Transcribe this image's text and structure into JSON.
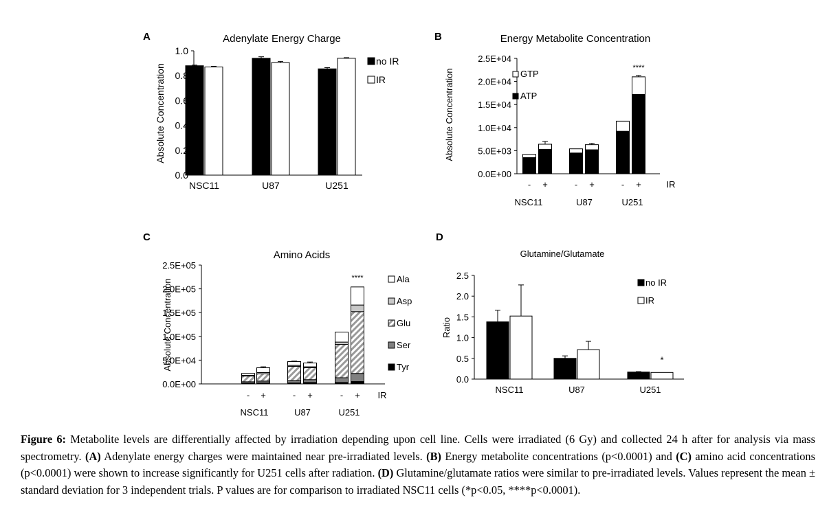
{
  "chart_data": [
    {
      "panel": "A",
      "type": "bar",
      "title": "Adenylate Energy Charge",
      "ylabel": "Absolute Concentration",
      "xlabel": "",
      "ylim": [
        0,
        1.0
      ],
      "yticks": [
        "0.0",
        "0.2",
        "0.4",
        "0.6",
        "0.8",
        "1.0"
      ],
      "categories": [
        "NSC11",
        "U87",
        "U251"
      ],
      "series": [
        {
          "name": "no IR",
          "color": "#000000",
          "values": [
            0.88,
            0.94,
            0.855
          ],
          "errors": [
            0.005,
            0.012,
            0.01
          ]
        },
        {
          "name": "IR",
          "color": "#ffffff",
          "values": [
            0.87,
            0.905,
            0.94
          ],
          "errors": [
            0.005,
            0.01,
            0.005
          ]
        }
      ]
    },
    {
      "panel": "B",
      "type": "bar",
      "stacked": true,
      "title": "Energy Metabolite Concentration",
      "ylabel": "Absolute Concentration",
      "ylim": [
        0,
        25000
      ],
      "yticks": [
        "0.0E+00",
        "5.0E+03",
        "1.0E+04",
        "1.5E+04",
        "2.0E+04",
        "2.5E+04"
      ],
      "groups": [
        "NSC11",
        "U87",
        "U251"
      ],
      "conditions": [
        "-",
        "+"
      ],
      "condition_label": "IR",
      "legend": [
        "GTP",
        "ATP"
      ],
      "series": [
        {
          "name": "ATP",
          "color": "#000000",
          "values": [
            3500,
            5300,
            4500,
            5200,
            9200,
            17200
          ],
          "errors": [
            0,
            0,
            0,
            0,
            500,
            1200
          ]
        },
        {
          "name": "GTP",
          "color": "#ffffff",
          "values": [
            700,
            1100,
            900,
            1100,
            2200,
            3800
          ],
          "errors": [
            0,
            600,
            0,
            300,
            0,
            300
          ]
        }
      ],
      "annotations": [
        {
          "text": "****",
          "at": "U251 +"
        }
      ]
    },
    {
      "panel": "C",
      "type": "bar",
      "stacked": true,
      "title": "Amino Acids",
      "ylabel": "Absolute Concentration",
      "ylim": [
        0,
        250000
      ],
      "yticks": [
        "0.0E+00",
        "5.0E+04",
        "1.0E+05",
        "1.5E+05",
        "2.0E+05",
        "2.5E+05"
      ],
      "groups": [
        "NSC11",
        "U87",
        "U251"
      ],
      "conditions": [
        "-",
        "+"
      ],
      "condition_label": "IR",
      "legend": [
        "Ala",
        "Asp",
        "Glu",
        "Ser",
        "Tyr"
      ],
      "series": [
        {
          "name": "Tyr",
          "color": "#000000",
          "values": [
            1500,
            2000,
            2000,
            3000,
            3000,
            5000
          ],
          "errors": [
            0,
            0,
            0,
            0,
            0,
            0
          ]
        },
        {
          "name": "Ser",
          "color": "#808080",
          "values": [
            3000,
            4000,
            5000,
            6000,
            10000,
            17000
          ],
          "errors": [
            0,
            0,
            0,
            0,
            0,
            0
          ]
        },
        {
          "name": "Glu",
          "color": "hatch",
          "values": [
            12000,
            15000,
            30000,
            25000,
            70000,
            130000
          ],
          "errors": [
            0,
            5000,
            0,
            0,
            3000,
            4000
          ]
        },
        {
          "name": "Asp",
          "color": "#c8c8c8",
          "values": [
            1500,
            3000,
            2000,
            2000,
            5000,
            14000
          ],
          "errors": [
            0,
            0,
            0,
            0,
            0,
            0
          ]
        },
        {
          "name": "Ala",
          "color": "#ffffff",
          "values": [
            4000,
            10000,
            8000,
            8000,
            21000,
            38000
          ],
          "errors": [
            0,
            2000,
            1000,
            2000,
            0,
            0
          ]
        }
      ],
      "annotations": [
        {
          "text": "****",
          "at": "U251 +"
        }
      ]
    },
    {
      "panel": "D",
      "type": "bar",
      "title": "Glutamine/Glutamate",
      "ylabel": "Ratio",
      "ylim": [
        0,
        2.5
      ],
      "yticks": [
        "0.0",
        "0.5",
        "1.0",
        "1.5",
        "2.0",
        "2.5"
      ],
      "categories": [
        "NSC11",
        "U87",
        "U251"
      ],
      "series": [
        {
          "name": "no IR",
          "color": "#000000",
          "values": [
            1.38,
            0.5,
            0.17
          ],
          "errors": [
            0.28,
            0.06,
            0.01
          ]
        },
        {
          "name": "IR",
          "color": "#ffffff",
          "values": [
            1.52,
            0.71,
            0.16
          ],
          "errors": [
            0.75,
            0.2,
            0
          ]
        }
      ],
      "annotations": [
        {
          "text": "*",
          "at": "U251 IR"
        }
      ]
    }
  ],
  "caption": {
    "figure_label": "Figure 6:",
    "text1": " Metabolite levels are differentially affected by irradiation depending upon cell line.  Cells were irradiated (6 Gy) and collected 24 h after for analysis via mass spectrometry. ",
    "labelA": "(A)",
    "text2": " Adenylate energy charges were maintained near pre-irradiated levels. ",
    "labelB": "(B)",
    "text3": " Energy metabolite concentrations (p<0.0001) and ",
    "labelC": "(C)",
    "text4": " amino acid concentrations (p<0.0001) were shown to increase significantly for U251 cells after radiation.  ",
    "labelD": "(D)",
    "text5": " Glutamine/glutamate ratios were similar to pre-irradiated levels. Values represent the mean ± standard deviation for 3 independent trials. P values are for comparison to irradiated NSC11 cells (*p<0.05, ****p<0.0001)."
  }
}
